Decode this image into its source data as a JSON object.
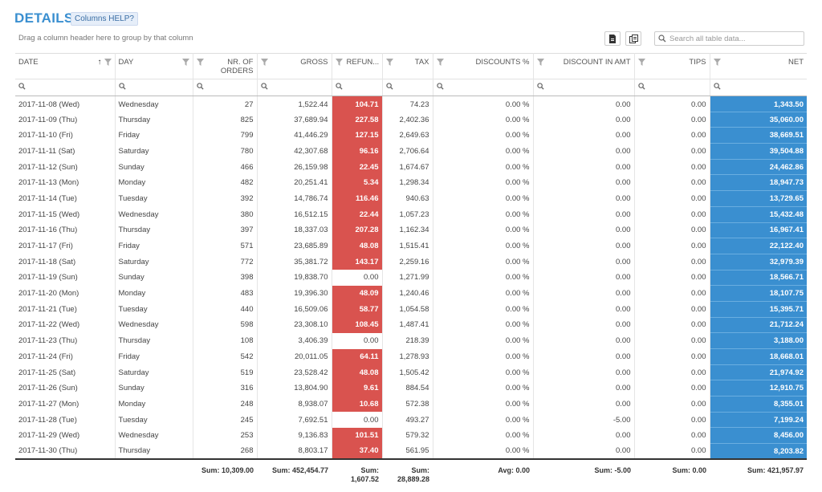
{
  "header": {
    "title": "DETAILS",
    "help_label": "Columns HELP?",
    "group_hint": "Drag a column header here to group by that column",
    "search_placeholder": "Search all table data..."
  },
  "columns": [
    "DATE",
    "DAY",
    "NR. OF ORDERS",
    "GROSS",
    "REFUN...",
    "TAX",
    "DISCOUNTS %",
    "DISCOUNT IN AMT",
    "TIPS",
    "NET"
  ],
  "rows": [
    [
      "2017-11-08 (Wed)",
      "Wednesday",
      "27",
      "1,522.44",
      "104.71",
      "74.23",
      "0.00 %",
      "0.00",
      "0.00",
      "1,343.50"
    ],
    [
      "2017-11-09 (Thu)",
      "Thursday",
      "825",
      "37,689.94",
      "227.58",
      "2,402.36",
      "0.00 %",
      "0.00",
      "0.00",
      "35,060.00"
    ],
    [
      "2017-11-10 (Fri)",
      "Friday",
      "799",
      "41,446.29",
      "127.15",
      "2,649.63",
      "0.00 %",
      "0.00",
      "0.00",
      "38,669.51"
    ],
    [
      "2017-11-11 (Sat)",
      "Saturday",
      "780",
      "42,307.68",
      "96.16",
      "2,706.64",
      "0.00 %",
      "0.00",
      "0.00",
      "39,504.88"
    ],
    [
      "2017-11-12 (Sun)",
      "Sunday",
      "466",
      "26,159.98",
      "22.45",
      "1,674.67",
      "0.00 %",
      "0.00",
      "0.00",
      "24,462.86"
    ],
    [
      "2017-11-13 (Mon)",
      "Monday",
      "482",
      "20,251.41",
      "5.34",
      "1,298.34",
      "0.00 %",
      "0.00",
      "0.00",
      "18,947.73"
    ],
    [
      "2017-11-14 (Tue)",
      "Tuesday",
      "392",
      "14,786.74",
      "116.46",
      "940.63",
      "0.00 %",
      "0.00",
      "0.00",
      "13,729.65"
    ],
    [
      "2017-11-15 (Wed)",
      "Wednesday",
      "380",
      "16,512.15",
      "22.44",
      "1,057.23",
      "0.00 %",
      "0.00",
      "0.00",
      "15,432.48"
    ],
    [
      "2017-11-16 (Thu)",
      "Thursday",
      "397",
      "18,337.03",
      "207.28",
      "1,162.34",
      "0.00 %",
      "0.00",
      "0.00",
      "16,967.41"
    ],
    [
      "2017-11-17 (Fri)",
      "Friday",
      "571",
      "23,685.89",
      "48.08",
      "1,515.41",
      "0.00 %",
      "0.00",
      "0.00",
      "22,122.40"
    ],
    [
      "2017-11-18 (Sat)",
      "Saturday",
      "772",
      "35,381.72",
      "143.17",
      "2,259.16",
      "0.00 %",
      "0.00",
      "0.00",
      "32,979.39"
    ],
    [
      "2017-11-19 (Sun)",
      "Sunday",
      "398",
      "19,838.70",
      "0.00",
      "1,271.99",
      "0.00 %",
      "0.00",
      "0.00",
      "18,566.71"
    ],
    [
      "2017-11-20 (Mon)",
      "Monday",
      "483",
      "19,396.30",
      "48.09",
      "1,240.46",
      "0.00 %",
      "0.00",
      "0.00",
      "18,107.75"
    ],
    [
      "2017-11-21 (Tue)",
      "Tuesday",
      "440",
      "16,509.06",
      "58.77",
      "1,054.58",
      "0.00 %",
      "0.00",
      "0.00",
      "15,395.71"
    ],
    [
      "2017-11-22 (Wed)",
      "Wednesday",
      "598",
      "23,308.10",
      "108.45",
      "1,487.41",
      "0.00 %",
      "0.00",
      "0.00",
      "21,712.24"
    ],
    [
      "2017-11-23 (Thu)",
      "Thursday",
      "108",
      "3,406.39",
      "0.00",
      "218.39",
      "0.00 %",
      "0.00",
      "0.00",
      "3,188.00"
    ],
    [
      "2017-11-24 (Fri)",
      "Friday",
      "542",
      "20,011.05",
      "64.11",
      "1,278.93",
      "0.00 %",
      "0.00",
      "0.00",
      "18,668.01"
    ],
    [
      "2017-11-25 (Sat)",
      "Saturday",
      "519",
      "23,528.42",
      "48.08",
      "1,505.42",
      "0.00 %",
      "0.00",
      "0.00",
      "21,974.92"
    ],
    [
      "2017-11-26 (Sun)",
      "Sunday",
      "316",
      "13,804.90",
      "9.61",
      "884.54",
      "0.00 %",
      "0.00",
      "0.00",
      "12,910.75"
    ],
    [
      "2017-11-27 (Mon)",
      "Monday",
      "248",
      "8,938.07",
      "10.68",
      "572.38",
      "0.00 %",
      "0.00",
      "0.00",
      "8,355.01"
    ],
    [
      "2017-11-28 (Tue)",
      "Tuesday",
      "245",
      "7,692.51",
      "0.00",
      "493.27",
      "0.00 %",
      "-5.00",
      "0.00",
      "7,199.24"
    ],
    [
      "2017-11-29 (Wed)",
      "Wednesday",
      "253",
      "9,136.83",
      "101.51",
      "579.32",
      "0.00 %",
      "0.00",
      "0.00",
      "8,456.00"
    ],
    [
      "2017-11-30 (Thu)",
      "Thursday",
      "268",
      "8,803.17",
      "37.40",
      "561.95",
      "0.00 %",
      "0.00",
      "0.00",
      "8,203.82"
    ]
  ],
  "footer": [
    "",
    "",
    "Sum: 10,309.00",
    "Sum: 452,454.77",
    "Sum: 1,607.52",
    "Sum: 28,889.28",
    "Avg: 0.00",
    "Sum: -5.00",
    "Sum: 0.00",
    "Sum: 421,957.97"
  ],
  "colors": {
    "title": "#3a8fd0",
    "refund_highlight": "#d9534f",
    "net_highlight": "#3a8fd0"
  }
}
